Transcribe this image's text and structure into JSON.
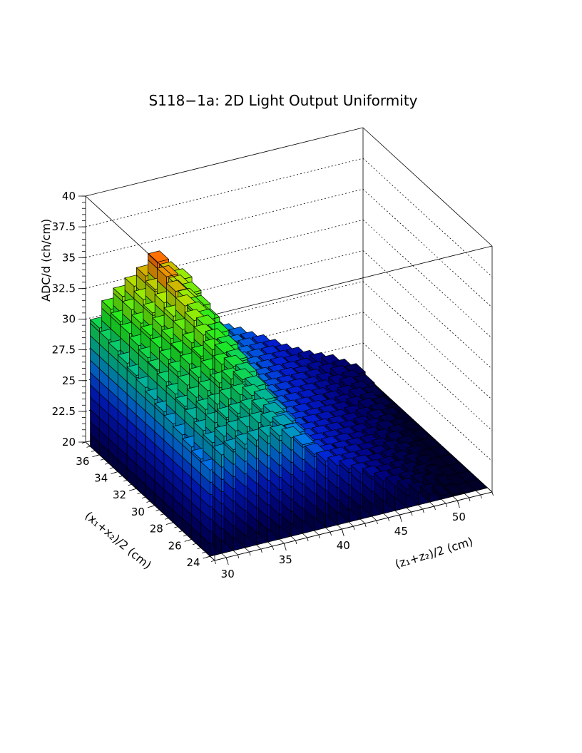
{
  "chart_data": {
    "type": "lego3d",
    "title": "S118−1a: 2D Light Output Uniformity",
    "zlabel": "ADC/d (ch/cm)",
    "xlabel": "(z₁+z₂)/2 (cm)",
    "ylabel": "(x₁+x₂)/2 (cm)",
    "zlim": [
      20,
      40
    ],
    "xlim": [
      29,
      53
    ],
    "ylim": [
      23.5,
      37.5
    ],
    "z_ticks": [
      "20",
      "22.5",
      "25",
      "27.5",
      "30",
      "32.5",
      "35",
      "37.5",
      "40"
    ],
    "x_ticks": [
      "30",
      "35",
      "40",
      "45",
      "50"
    ],
    "y_ticks": [
      "24",
      "26",
      "28",
      "30",
      "32",
      "34",
      "36"
    ],
    "x_bins": [
      29.5,
      30.5,
      31.5,
      32.5,
      33.5,
      34.5,
      35.5,
      36.5,
      37.5,
      38.5,
      39.5,
      40.5,
      41.5,
      42.5,
      43.5,
      44.5,
      45.5,
      46.5,
      47.5,
      48.5,
      49.5,
      50.5,
      51.5,
      52.5
    ],
    "y_bins": [
      24.5,
      25.5,
      26.5,
      27.5,
      28.5,
      29.5,
      30.5,
      31.5,
      32.5,
      33.5,
      34.5,
      35.5,
      36.5
    ],
    "heights": [
      [
        27.0,
        28.0,
        28.2,
        28.4,
        28.5,
        28.6,
        28.4,
        28.0,
        27.2,
        26.2,
        25.4,
        24.8,
        24.3,
        23.7,
        23.2,
        22.6,
        22.0,
        21.5,
        21.0,
        20.6,
        20.3,
        20.1,
        20.0,
        20.0
      ],
      [
        27.2,
        28.3,
        28.6,
        28.8,
        28.9,
        29.0,
        28.8,
        28.3,
        27.4,
        26.3,
        25.6,
        25.0,
        24.5,
        23.9,
        23.4,
        22.8,
        22.2,
        21.7,
        21.2,
        20.8,
        20.5,
        20.2,
        20.0,
        20.0
      ],
      [
        27.5,
        28.6,
        29.0,
        29.2,
        29.3,
        29.4,
        29.2,
        28.6,
        27.6,
        26.5,
        25.8,
        25.2,
        24.7,
        24.1,
        23.6,
        23.0,
        22.4,
        21.9,
        21.4,
        21.0,
        20.6,
        20.3,
        20.0,
        20.0
      ],
      [
        27.8,
        28.9,
        29.4,
        29.6,
        29.8,
        29.9,
        29.6,
        29.0,
        27.9,
        26.7,
        26.0,
        25.4,
        24.9,
        24.3,
        23.8,
        23.2,
        22.6,
        22.1,
        21.6,
        21.2,
        20.8,
        20.4,
        20.0,
        20.0
      ],
      [
        28.0,
        29.2,
        29.7,
        30.0,
        30.4,
        30.5,
        30.2,
        29.4,
        28.1,
        26.9,
        26.2,
        25.6,
        25.1,
        24.5,
        24.0,
        23.4,
        22.8,
        22.3,
        21.8,
        21.4,
        21.0,
        20.5,
        20.0,
        20.0
      ],
      [
        28.3,
        29.5,
        30.0,
        30.4,
        30.8,
        31.0,
        30.6,
        29.8,
        28.4,
        27.1,
        26.4,
        25.8,
        25.3,
        24.7,
        24.2,
        23.6,
        23.0,
        22.5,
        22.0,
        21.6,
        21.2,
        20.6,
        20.0,
        20.0
      ],
      [
        28.6,
        29.8,
        30.4,
        30.8,
        31.2,
        31.5,
        31.0,
        30.2,
        28.6,
        27.3,
        26.6,
        26.0,
        25.5,
        24.9,
        24.4,
        23.8,
        23.2,
        22.7,
        22.2,
        21.8,
        21.4,
        20.8,
        20.2,
        20.0
      ],
      [
        28.9,
        30.1,
        30.7,
        31.1,
        31.6,
        32.0,
        31.4,
        30.6,
        28.9,
        27.5,
        26.8,
        26.2,
        25.7,
        25.1,
        24.6,
        24.0,
        23.4,
        22.9,
        22.4,
        22.0,
        21.6,
        21.0,
        20.4,
        20.0
      ],
      [
        29.2,
        30.4,
        31.0,
        31.5,
        32.0,
        32.5,
        31.8,
        31.0,
        29.2,
        27.7,
        27.0,
        26.4,
        25.9,
        25.3,
        24.8,
        24.2,
        23.6,
        23.1,
        22.6,
        22.2,
        21.8,
        21.2,
        20.6,
        20.0
      ],
      [
        29.5,
        30.7,
        31.3,
        31.8,
        32.4,
        33.0,
        32.2,
        31.4,
        29.5,
        27.9,
        27.2,
        26.6,
        26.1,
        25.5,
        25.0,
        24.4,
        23.8,
        23.3,
        22.8,
        22.4,
        22.0,
        21.4,
        20.8,
        20.0
      ],
      [
        29.8,
        31.0,
        31.6,
        32.2,
        32.8,
        33.5,
        32.6,
        31.8,
        29.8,
        28.1,
        27.4,
        26.8,
        26.3,
        25.7,
        25.2,
        24.6,
        24.0,
        23.5,
        23.0,
        22.6,
        22.2,
        21.6,
        21.0,
        20.0
      ],
      [
        30.0,
        31.3,
        32.0,
        32.6,
        33.2,
        34.0,
        33.0,
        32.2,
        30.1,
        28.3,
        27.6,
        27.0,
        26.5,
        25.9,
        25.4,
        24.8,
        24.2,
        23.7,
        23.2,
        22.8,
        22.4,
        21.8,
        21.2,
        20.0
      ],
      [
        30.3,
        31.6,
        32.4,
        33.0,
        33.6,
        34.5,
        33.4,
        32.6,
        30.4,
        28.5,
        27.8,
        27.2,
        26.7,
        26.1,
        25.6,
        25.0,
        24.4,
        23.9,
        23.4,
        23.0,
        22.6,
        22.0,
        21.4,
        20.0
      ]
    ]
  }
}
